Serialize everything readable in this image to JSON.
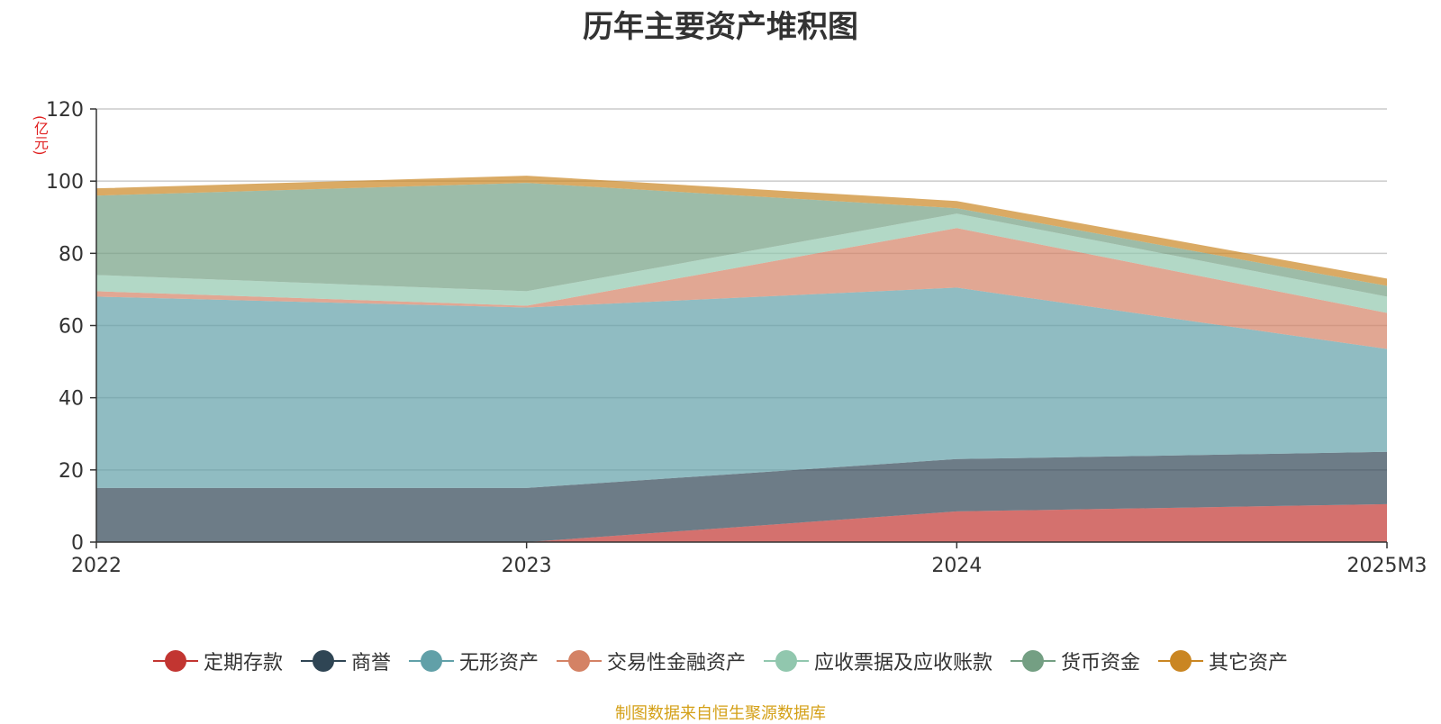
{
  "unit": "(亿元)",
  "source_note": "制图数据来自恒生聚源数据库",
  "chart_data": {
    "type": "area",
    "stacked": true,
    "title": "历年主要资产堆积图",
    "xlabel": "",
    "ylabel": "(亿元)",
    "x": [
      "2022",
      "2023",
      "2024",
      "2025M3"
    ],
    "ylim": [
      0,
      120
    ],
    "yticks": [
      0,
      20,
      40,
      60,
      80,
      100,
      120
    ],
    "grid": true,
    "legend_position": "bottom",
    "series": [
      {
        "name": "定期存款",
        "color": "#c23531",
        "values": [
          0,
          0,
          8.5,
          10.5
        ]
      },
      {
        "name": "商誉",
        "color": "#2f4554",
        "values": [
          15,
          15,
          14.5,
          14.5
        ]
      },
      {
        "name": "无形资产",
        "color": "#61a0a8",
        "values": [
          53,
          50,
          47.5,
          28.5
        ]
      },
      {
        "name": "交易性金融资产",
        "color": "#d48265",
        "values": [
          1.5,
          0.5,
          16.5,
          10
        ]
      },
      {
        "name": "应收票据及应收账款",
        "color": "#91c7ae",
        "values": [
          4.5,
          4,
          4,
          4.5
        ]
      },
      {
        "name": "货币资金",
        "color": "#749f83",
        "values": [
          22,
          30,
          1.5,
          3
        ]
      },
      {
        "name": "其它资产",
        "color": "#ca8622",
        "values": [
          2,
          2,
          2,
          2
        ]
      }
    ]
  }
}
